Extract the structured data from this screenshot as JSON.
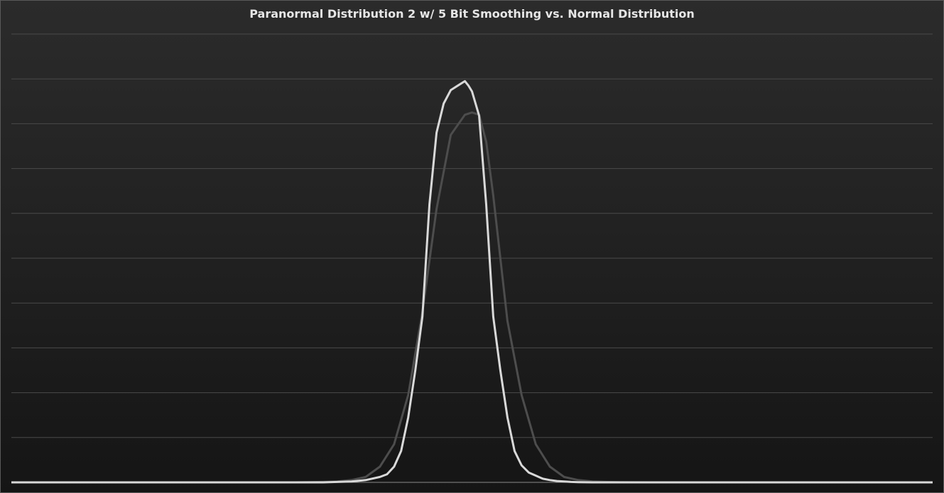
{
  "chart_data": {
    "type": "line",
    "title": "Paranormal Distribution 2 w/ 5 Bit Smoothing vs. Normal Distribution",
    "xlabel": "",
    "ylabel": "",
    "grid": true,
    "legend": "none",
    "xlim": [
      0,
      260
    ],
    "ylim": [
      0,
      10
    ],
    "series": [
      {
        "color": "#4d4d4d",
        "x": [
          0,
          80,
          88,
          92,
          96,
          100,
          104,
          108,
          112,
          116,
          120,
          124,
          128,
          130,
          132,
          134,
          136,
          138,
          140,
          144,
          148,
          152,
          156,
          160,
          164,
          168,
          172,
          180,
          260
        ],
        "values": [
          0,
          0,
          0.01,
          0.02,
          0.05,
          0.12,
          0.35,
          0.85,
          1.95,
          3.8,
          6.1,
          7.75,
          8.2,
          8.25,
          8.2,
          7.6,
          6.4,
          5.0,
          3.6,
          1.95,
          0.85,
          0.35,
          0.12,
          0.05,
          0.02,
          0.01,
          0.005,
          0,
          0
        ]
      },
      {
        "color": "#d9d9d9",
        "x": [
          0,
          88,
          96,
          100,
          104,
          106,
          108,
          110,
          112,
          114,
          116,
          118,
          120,
          122,
          124,
          126,
          128,
          129,
          130,
          132,
          134,
          136,
          138,
          140,
          142,
          144,
          146,
          148,
          150,
          152,
          154,
          156,
          158,
          160,
          164,
          170,
          176,
          260
        ],
        "values": [
          0,
          0,
          0.02,
          0.05,
          0.12,
          0.18,
          0.35,
          0.7,
          1.45,
          2.5,
          3.7,
          6.2,
          7.8,
          8.45,
          8.75,
          8.85,
          8.95,
          8.85,
          8.72,
          8.18,
          6.2,
          3.7,
          2.5,
          1.45,
          0.7,
          0.38,
          0.22,
          0.15,
          0.08,
          0.05,
          0.03,
          0.02,
          0.01,
          0.005,
          0,
          0,
          0,
          0
        ]
      }
    ]
  }
}
